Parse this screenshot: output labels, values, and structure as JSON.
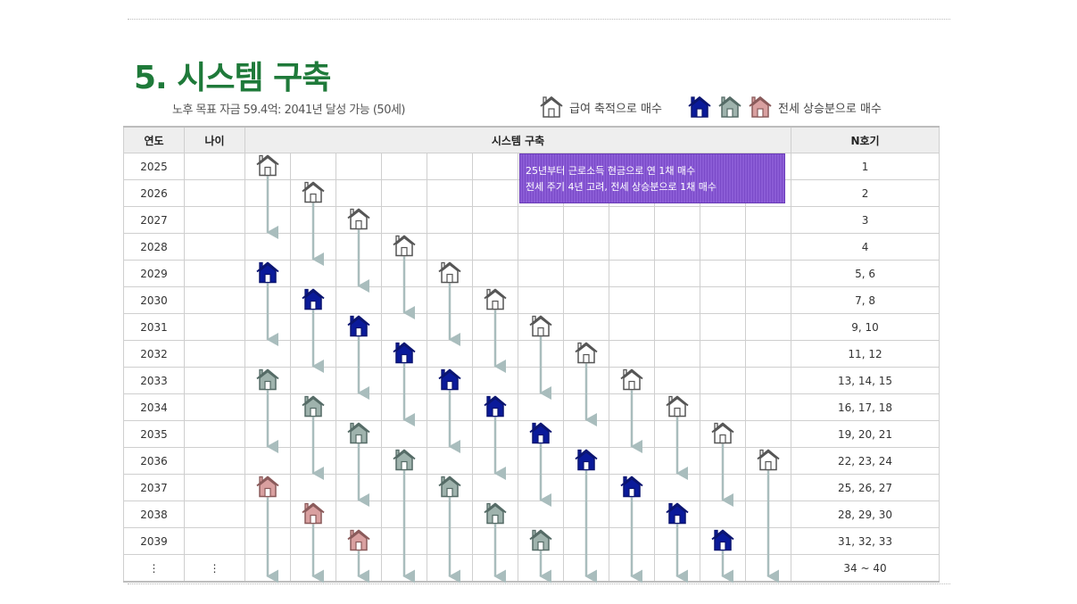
{
  "title": "5. 시스템 구축",
  "subtitle": "노후 목표 자금 59.4억: 2041년 달성 가능 (50세)",
  "legend": {
    "salary": {
      "label": "급여 축적으로 매수",
      "icon": "house-outline-icon"
    },
    "deposit": {
      "label": "전세 상승분으로 매수",
      "icons": [
        "house-navy-icon",
        "house-gray-icon",
        "house-pink-icon"
      ]
    }
  },
  "colors": {
    "title": "#1f7a3a",
    "navy": "#0a1a9a",
    "gray": "#9fb3ad",
    "pink": "#d9a0a0",
    "arrow": "#a9bdbd",
    "note": "#8b5cd6"
  },
  "table": {
    "headers": {
      "year": "연도",
      "age": "나이",
      "system": "시스템 구축",
      "nth": "N호기"
    },
    "rows": [
      {
        "year": "2025",
        "age": "",
        "nth": "1"
      },
      {
        "year": "2026",
        "age": "",
        "nth": "2"
      },
      {
        "year": "2027",
        "age": "",
        "nth": "3"
      },
      {
        "year": "2028",
        "age": "",
        "nth": "4"
      },
      {
        "year": "2029",
        "age": "",
        "nth": "5, 6"
      },
      {
        "year": "2030",
        "age": "",
        "nth": "7, 8"
      },
      {
        "year": "2031",
        "age": "",
        "nth": "9, 10"
      },
      {
        "year": "2032",
        "age": "",
        "nth": "11, 12"
      },
      {
        "year": "2033",
        "age": "",
        "nth": "13, 14, 15"
      },
      {
        "year": "2034",
        "age": "",
        "nth": "16, 17, 18"
      },
      {
        "year": "2035",
        "age": "",
        "nth": "19, 20, 21"
      },
      {
        "year": "2036",
        "age": "",
        "nth": "22, 23, 24"
      },
      {
        "year": "2037",
        "age": "",
        "nth": "25, 26, 27"
      },
      {
        "year": "2038",
        "age": "",
        "nth": "28, 29, 30"
      },
      {
        "year": "2039",
        "age": "",
        "nth": "31, 32, 33"
      },
      {
        "year": "⋮",
        "age": "⋮",
        "nth": "34 ~ 40"
      }
    ]
  },
  "note": {
    "line1": "25년부터 근로소득 현금으로 연 1채 매수",
    "line2": "전세 주기 4년 고려, 전세 상승분으로 1채 매수"
  },
  "houses": [
    {
      "col": 0,
      "row": 0,
      "type": "outline"
    },
    {
      "col": 1,
      "row": 1,
      "type": "outline"
    },
    {
      "col": 2,
      "row": 2,
      "type": "outline"
    },
    {
      "col": 3,
      "row": 3,
      "type": "outline"
    },
    {
      "col": 0,
      "row": 4,
      "type": "navy"
    },
    {
      "col": 4,
      "row": 4,
      "type": "outline"
    },
    {
      "col": 1,
      "row": 5,
      "type": "navy"
    },
    {
      "col": 5,
      "row": 5,
      "type": "outline"
    },
    {
      "col": 2,
      "row": 6,
      "type": "navy"
    },
    {
      "col": 6,
      "row": 6,
      "type": "outline"
    },
    {
      "col": 3,
      "row": 7,
      "type": "navy"
    },
    {
      "col": 7,
      "row": 7,
      "type": "outline"
    },
    {
      "col": 0,
      "row": 8,
      "type": "gray"
    },
    {
      "col": 4,
      "row": 8,
      "type": "navy"
    },
    {
      "col": 8,
      "row": 8,
      "type": "outline"
    },
    {
      "col": 1,
      "row": 9,
      "type": "gray"
    },
    {
      "col": 5,
      "row": 9,
      "type": "navy"
    },
    {
      "col": 9,
      "row": 9,
      "type": "outline"
    },
    {
      "col": 2,
      "row": 10,
      "type": "gray"
    },
    {
      "col": 6,
      "row": 10,
      "type": "navy"
    },
    {
      "col": 10,
      "row": 10,
      "type": "outline"
    },
    {
      "col": 3,
      "row": 11,
      "type": "gray"
    },
    {
      "col": 7,
      "row": 11,
      "type": "navy"
    },
    {
      "col": 11,
      "row": 11,
      "type": "outline"
    },
    {
      "col": 0,
      "row": 12,
      "type": "pink"
    },
    {
      "col": 4,
      "row": 12,
      "type": "gray"
    },
    {
      "col": 8,
      "row": 12,
      "type": "navy"
    },
    {
      "col": 1,
      "row": 13,
      "type": "pink"
    },
    {
      "col": 5,
      "row": 13,
      "type": "gray"
    },
    {
      "col": 9,
      "row": 13,
      "type": "navy"
    },
    {
      "col": 2,
      "row": 14,
      "type": "pink"
    },
    {
      "col": 6,
      "row": 14,
      "type": "gray"
    },
    {
      "col": 10,
      "row": 14,
      "type": "navy"
    }
  ],
  "arrows": [
    {
      "col": 0,
      "from": 0,
      "to": 3
    },
    {
      "col": 0,
      "from": 4,
      "to": 7
    },
    {
      "col": 0,
      "from": 8,
      "to": 11
    },
    {
      "col": 0,
      "from": 12,
      "to": 15
    },
    {
      "col": 1,
      "from": 1,
      "to": 4
    },
    {
      "col": 1,
      "from": 5,
      "to": 8
    },
    {
      "col": 1,
      "from": 9,
      "to": 12
    },
    {
      "col": 1,
      "from": 13,
      "to": 15
    },
    {
      "col": 2,
      "from": 2,
      "to": 5
    },
    {
      "col": 2,
      "from": 6,
      "to": 9
    },
    {
      "col": 2,
      "from": 10,
      "to": 13
    },
    {
      "col": 2,
      "from": 14,
      "to": 15
    },
    {
      "col": 3,
      "from": 3,
      "to": 6
    },
    {
      "col": 3,
      "from": 7,
      "to": 10
    },
    {
      "col": 3,
      "from": 11,
      "to": 15
    },
    {
      "col": 4,
      "from": 4,
      "to": 7
    },
    {
      "col": 4,
      "from": 8,
      "to": 11
    },
    {
      "col": 4,
      "from": 12,
      "to": 15
    },
    {
      "col": 5,
      "from": 5,
      "to": 8
    },
    {
      "col": 5,
      "from": 9,
      "to": 12
    },
    {
      "col": 5,
      "from": 13,
      "to": 15
    },
    {
      "col": 6,
      "from": 6,
      "to": 9
    },
    {
      "col": 6,
      "from": 10,
      "to": 13
    },
    {
      "col": 6,
      "from": 14,
      "to": 15
    },
    {
      "col": 7,
      "from": 7,
      "to": 10
    },
    {
      "col": 7,
      "from": 11,
      "to": 15
    },
    {
      "col": 8,
      "from": 8,
      "to": 11
    },
    {
      "col": 8,
      "from": 12,
      "to": 15
    },
    {
      "col": 9,
      "from": 9,
      "to": 12
    },
    {
      "col": 9,
      "from": 13,
      "to": 15
    },
    {
      "col": 10,
      "from": 10,
      "to": 13
    },
    {
      "col": 10,
      "from": 14,
      "to": 15
    },
    {
      "col": 11,
      "from": 11,
      "to": 15
    }
  ]
}
